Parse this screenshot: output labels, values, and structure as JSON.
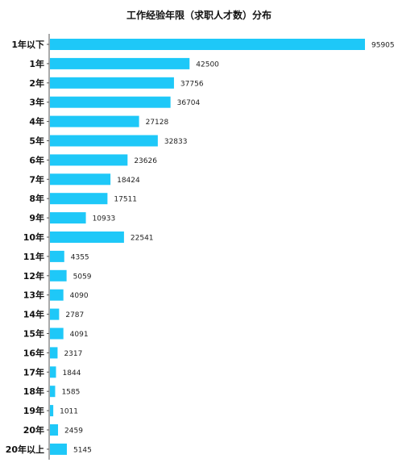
{
  "chart_data": {
    "type": "bar",
    "orientation": "horizontal",
    "title": "工作经验年限（求职人才数）分布",
    "categories": [
      "1年以下",
      "1年",
      "2年",
      "3年",
      "4年",
      "5年",
      "6年",
      "7年",
      "8年",
      "9年",
      "10年",
      "11年",
      "12年",
      "13年",
      "14年",
      "15年",
      "16年",
      "17年",
      "18年",
      "19年",
      "20年",
      "20年以上"
    ],
    "values": [
      95905,
      42500,
      37756,
      36704,
      27128,
      32833,
      23626,
      18424,
      17511,
      10933,
      22541,
      4355,
      5059,
      4090,
      2787,
      4091,
      2317,
      1844,
      1585,
      1011,
      2459,
      5145
    ],
    "bar_color": "#1ec8f8",
    "grid": false,
    "legend": "none",
    "data_labels": true
  }
}
